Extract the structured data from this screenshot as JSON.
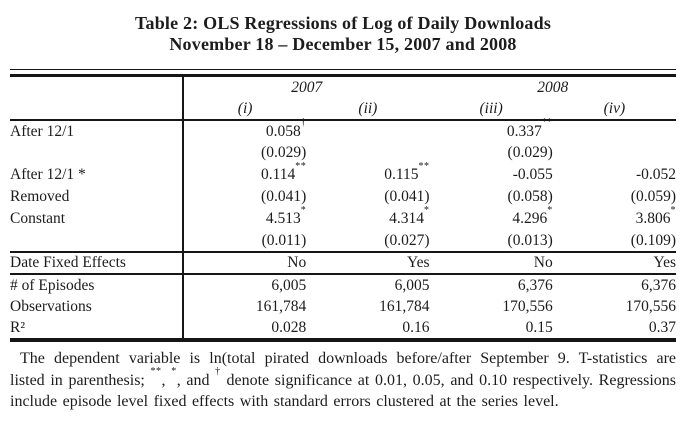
{
  "title": {
    "line1": "Table 2: OLS Regressions of Log of Daily Downloads",
    "line2": "November 18 – December 15, 2007 and 2008"
  },
  "colors": {
    "ink": "#1c1c1c",
    "rule": "#161616",
    "background": "#ffffff"
  },
  "table": {
    "year_headers": [
      {
        "label": "2007",
        "colspan": 2
      },
      {
        "label": "2008",
        "colspan": 2
      }
    ],
    "column_headers": [
      "(i)",
      "(ii)",
      "(iii)",
      "(iv)"
    ],
    "groups": {
      "coefficients": [
        {
          "label": "After 12/1",
          "cells": [
            {
              "v": "0.058",
              "sup": "†"
            },
            {
              "v": ""
            },
            {
              "v": "0.337",
              "sup": "**"
            },
            {
              "v": ""
            }
          ]
        },
        {
          "label": "",
          "cells": [
            {
              "v": "(0.029)"
            },
            {
              "v": ""
            },
            {
              "v": "(0.029)"
            },
            {
              "v": ""
            }
          ]
        },
        {
          "label": "After 12/1 *",
          "cells": [
            {
              "v": "0.114",
              "sup": "**"
            },
            {
              "v": "0.115",
              "sup": "**"
            },
            {
              "v": "-0.055"
            },
            {
              "v": "-0.052"
            }
          ]
        },
        {
          "label": "Removed",
          "cells": [
            {
              "v": "(0.041)"
            },
            {
              "v": "(0.041)"
            },
            {
              "v": "(0.058)"
            },
            {
              "v": "(0.059)"
            }
          ]
        },
        {
          "label": "Constant",
          "cells": [
            {
              "v": "4.513",
              "sup": "*"
            },
            {
              "v": "4.314",
              "sup": "*"
            },
            {
              "v": "4.296",
              "sup": "*"
            },
            {
              "v": "3.806",
              "sup": "*"
            }
          ]
        },
        {
          "label": "",
          "cells": [
            {
              "v": "(0.011)"
            },
            {
              "v": "(0.027)"
            },
            {
              "v": "(0.013)"
            },
            {
              "v": "(0.109)"
            }
          ]
        }
      ],
      "fixed_effects": [
        {
          "label": "Date Fixed Effects",
          "cells": [
            {
              "v": "No"
            },
            {
              "v": "Yes"
            },
            {
              "v": "No"
            },
            {
              "v": "Yes"
            }
          ]
        }
      ],
      "statistics": [
        {
          "label": "# of Episodes",
          "cells": [
            {
              "v": "6,005"
            },
            {
              "v": "6,005"
            },
            {
              "v": "6,376"
            },
            {
              "v": "6,376"
            }
          ]
        },
        {
          "label": "Observations",
          "cells": [
            {
              "v": "161,784"
            },
            {
              "v": "161,784"
            },
            {
              "v": "170,556"
            },
            {
              "v": "170,556"
            }
          ]
        },
        {
          "label": "R²",
          "cells": [
            {
              "v": "0.028"
            },
            {
              "v": "0.16"
            },
            {
              "v": "0.15"
            },
            {
              "v": "0.37"
            }
          ]
        }
      ]
    }
  },
  "note": {
    "segments": [
      {
        "t": "The dependent variable is ln(total pirated downloads before/after September 9. T-statistics are listed in parenthesis; "
      },
      {
        "sup": "**"
      },
      {
        "t": ", "
      },
      {
        "sup": "*"
      },
      {
        "t": ", and "
      },
      {
        "sup": "†"
      },
      {
        "t": " denote significance at 0.01, 0.05, and 0.10 respectively. Regressions include episode level fixed effects with standard errors clustered at the series level."
      }
    ]
  }
}
